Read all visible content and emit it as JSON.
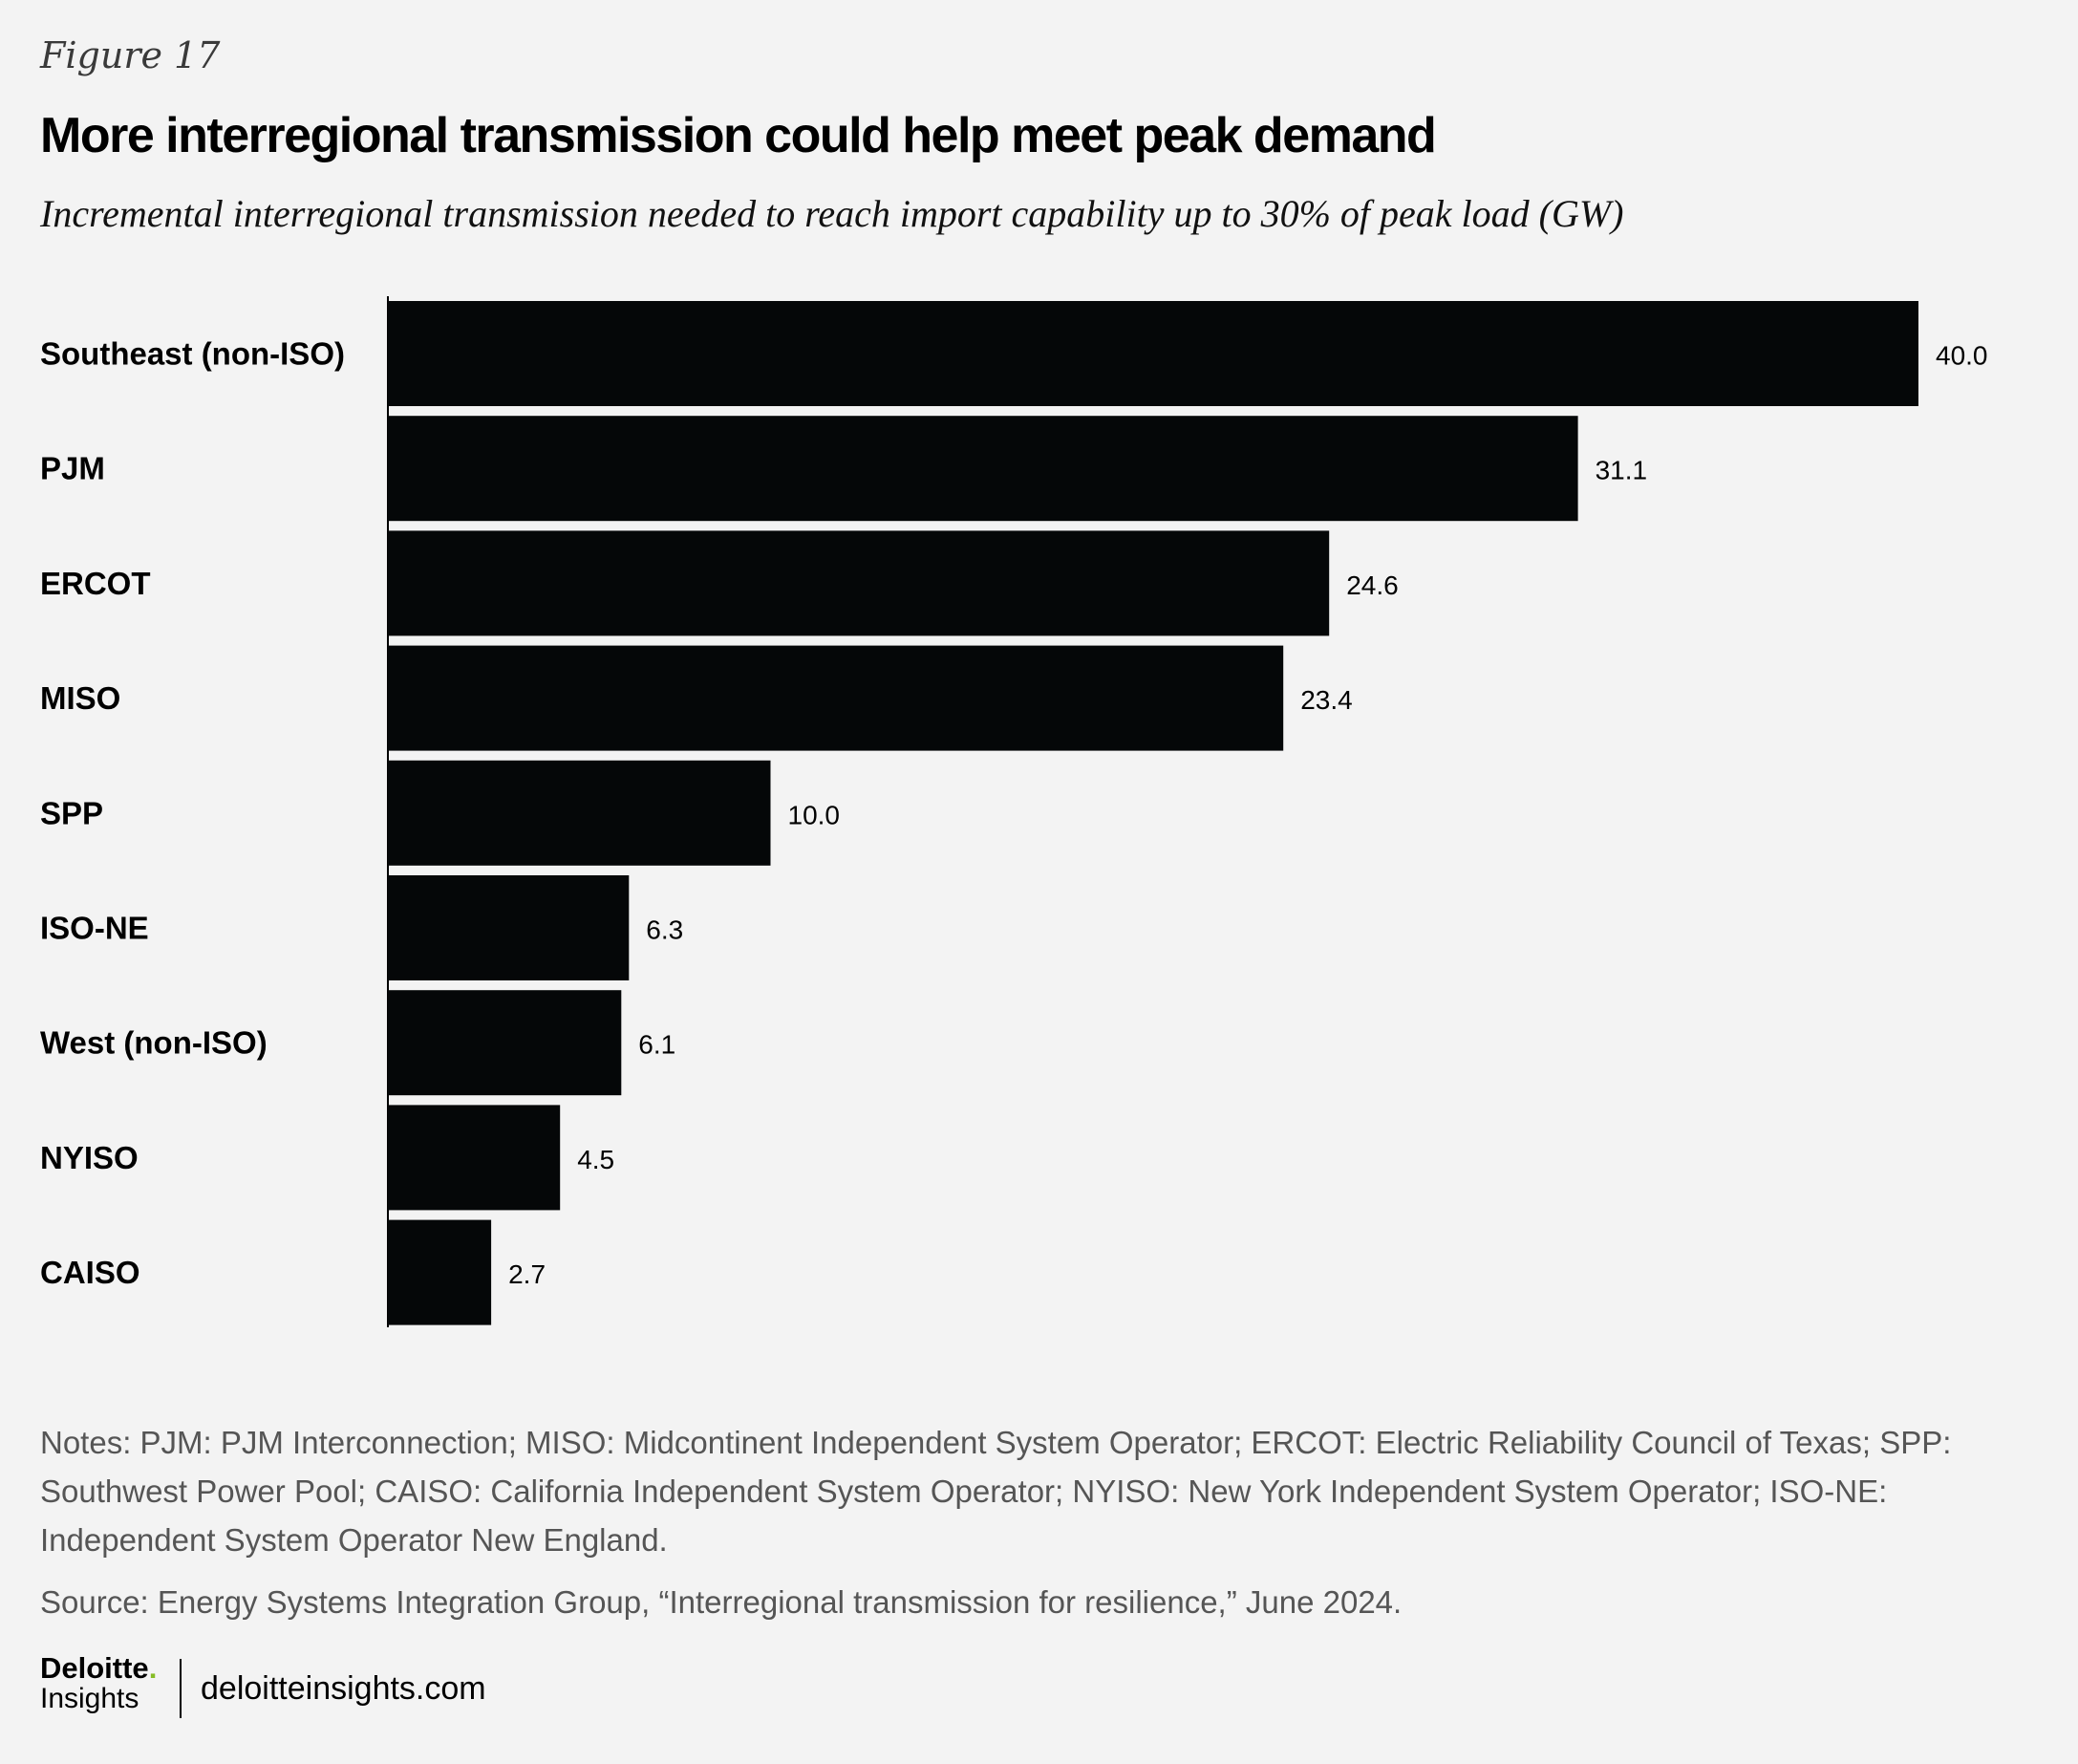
{
  "header": {
    "figure_label": "Figure 17",
    "title": "More interregional transmission could help meet peak demand",
    "subtitle": "Incremental interregional transmission needed to reach import capability up to 30% of peak load (GW)"
  },
  "chart_data": {
    "type": "bar",
    "orientation": "horizontal",
    "title": "More interregional transmission could help meet peak demand",
    "subtitle": "Incremental interregional transmission needed to reach import capability up to 30% of peak load (GW)",
    "xlabel": "",
    "ylabel": "",
    "categories": [
      "Southeast (non-ISO)",
      "PJM",
      "ERCOT",
      "MISO",
      "SPP",
      "ISO-NE",
      "West (non-ISO)",
      "NYISO",
      "CAISO"
    ],
    "values": [
      40.0,
      31.1,
      24.6,
      23.4,
      10.0,
      6.3,
      6.1,
      4.5,
      2.7
    ],
    "value_labels": [
      "40.0",
      "31.1",
      "24.6",
      "23.4",
      "10.0",
      "6.3",
      "6.1",
      "4.5",
      "2.7"
    ],
    "xlim": [
      0,
      40
    ],
    "grid": false,
    "bar_color": "#050708"
  },
  "notes": "Notes: PJM: PJM Interconnection; MISO: Midcontinent Independent System Operator; ERCOT: Electric Reliability Council of Texas; SPP: Southwest Power Pool; CAISO: California Independent System Operator; NYISO: New York Independent System Operator; ISO-NE: Independent System Operator New England.",
  "source": "Source: Energy Systems Integration Group, “Interregional transmission for resilience,” June 2024.",
  "footer": {
    "brand": "Deloitte",
    "brand_dot": ".",
    "brand_sub": "Insights",
    "site": "deloitteinsights.com",
    "accent_color": "#86bc25"
  }
}
